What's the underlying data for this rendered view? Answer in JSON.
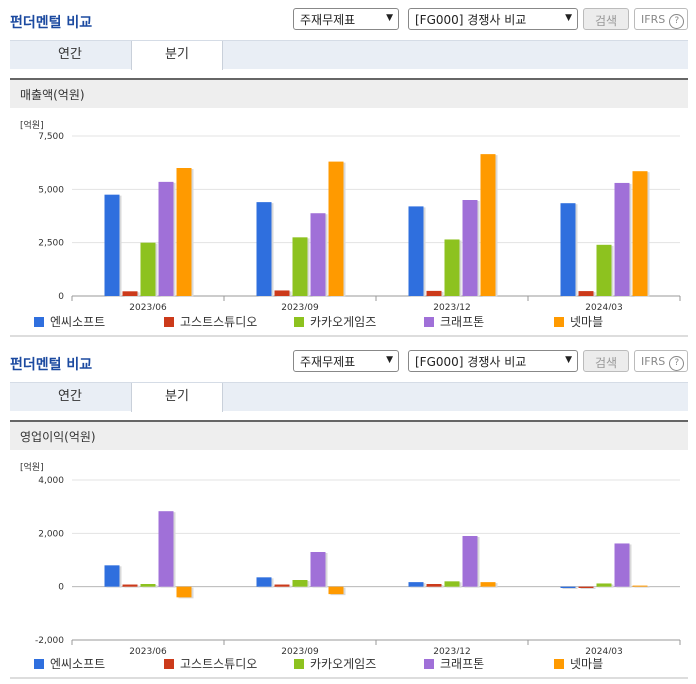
{
  "panels": [
    {
      "title": "펀더멘털 비교",
      "select_statement": "주재무제표",
      "select_compare": "[FG000] 경쟁사 비교",
      "search_label": "검색",
      "ifrs_label": "IFRS",
      "tabs": [
        "연간",
        "분기"
      ],
      "active_tab": "분기",
      "section_title": "매출액(억원)",
      "unit_label": "[억원]"
    },
    {
      "title": "펀더멘털 비교",
      "select_statement": "주재무제표",
      "select_compare": "[FG000] 경쟁사 비교",
      "search_label": "검색",
      "ifrs_label": "IFRS",
      "tabs": [
        "연간",
        "분기"
      ],
      "active_tab": "분기",
      "section_title": "영업이익(억원)",
      "unit_label": "[억원]"
    }
  ],
  "colors": [
    "#2f6fde",
    "#cc3a1a",
    "#8dc21f",
    "#a070d8",
    "#ff9a00"
  ],
  "chart_data": [
    {
      "type": "bar",
      "categories": [
        "2023/06",
        "2023/09",
        "2023/12",
        "2024/03"
      ],
      "ylim": [
        0,
        7500
      ],
      "yticks": [
        "0",
        "2,500",
        "5,000",
        "7,500"
      ],
      "ytick_values": [
        0,
        2500,
        5000,
        7500
      ],
      "series": [
        {
          "name": "엔씨소프트",
          "values": [
            4750,
            4400,
            4200,
            4350
          ]
        },
        {
          "name": "고스트스튜디오",
          "values": [
            220,
            260,
            240,
            230
          ]
        },
        {
          "name": "카카오게임즈",
          "values": [
            2500,
            2750,
            2650,
            2400
          ]
        },
        {
          "name": "크래프톤",
          "values": [
            5350,
            3880,
            4500,
            5300
          ]
        },
        {
          "name": "넷마블",
          "values": [
            6000,
            6300,
            6650,
            5850
          ]
        }
      ]
    },
    {
      "type": "bar",
      "categories": [
        "2023/06",
        "2023/09",
        "2023/12",
        "2024/03"
      ],
      "ylim": [
        -2000,
        4000
      ],
      "yticks": [
        "-2,000",
        "0",
        "2,000",
        "4,000"
      ],
      "ytick_values": [
        -2000,
        0,
        2000,
        4000
      ],
      "series": [
        {
          "name": "엔씨소프트",
          "values": [
            800,
            350,
            170,
            -50
          ]
        },
        {
          "name": "고스트스튜디오",
          "values": [
            80,
            80,
            100,
            -50
          ]
        },
        {
          "name": "카카오게임즈",
          "values": [
            100,
            250,
            200,
            120
          ]
        },
        {
          "name": "크래프톤",
          "values": [
            2830,
            1300,
            1900,
            1620
          ]
        },
        {
          "name": "넷마블",
          "values": [
            -400,
            -280,
            170,
            40
          ]
        }
      ]
    }
  ]
}
